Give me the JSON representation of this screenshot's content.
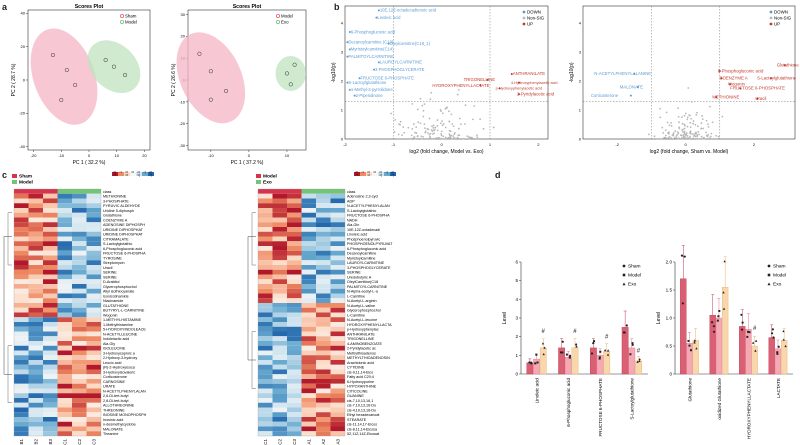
{
  "panels": {
    "a": "a",
    "b": "b",
    "c": "c",
    "d": "d"
  },
  "scores1": {
    "title": "Scores Plot",
    "xlabel": "PC 1 ( 32.2 %)",
    "ylabel": "PC 2 ( 28.7 %)",
    "legend": [
      "Sham",
      "Model"
    ],
    "xticks": [
      "-20",
      "-10",
      "0",
      "10",
      "20"
    ],
    "yticks": [
      "-40",
      "-20",
      "0",
      "20",
      "40"
    ],
    "sham": [
      [
        -13,
        15
      ],
      [
        -8,
        6
      ],
      [
        -5,
        -3
      ],
      [
        -10,
        -12
      ]
    ],
    "model": [
      [
        6,
        12
      ],
      [
        9,
        8
      ],
      [
        13,
        3
      ]
    ]
  },
  "scores2": {
    "title": "Scores Plot",
    "xlabel": "PC 1 ( 37.2 %)",
    "ylabel": "PC 2 ( 26.6 %)",
    "legend": [
      "Model",
      "Exo"
    ],
    "xticks": [
      "-10",
      "0",
      "10"
    ],
    "yticks": [
      "-30",
      "-20",
      "-10",
      "0",
      "10",
      "20",
      "30"
    ],
    "model": [
      [
        -13,
        12
      ],
      [
        -10,
        4
      ],
      [
        -6,
        -5
      ],
      [
        -10,
        -9
      ]
    ],
    "exo": [
      [
        10,
        3
      ],
      [
        11,
        -2
      ],
      [
        12,
        7
      ]
    ]
  },
  "volcano1": {
    "xlabel": "log2 (fold change, Model vs. Exo)",
    "ylabel": "-log10(p)",
    "legend": [
      "DOWN",
      "Non-SIG",
      "UP"
    ],
    "xticks": [
      "-2",
      "-1",
      "0",
      "1",
      "2"
    ],
    "yticks": [
      "0",
      "1",
      "2",
      "3",
      "4"
    ],
    "down": [
      "10E,12Z-octadecadienoic acid",
      "Linoleic acid",
      "6-Phosphogluconic acid",
      "Decanoylcarnitine (C10)",
      "Myristoylcarnitine(C14)",
      "Oleylcarnitine(C18_1)",
      "PALMITOYLCARNITINE",
      "LAUROYLCARNITINE",
      "3-PHOSPHOGLYCERATE",
      "FRUCTOSE 6-PHOSPHATE",
      "S-Lactoylglutathione",
      "1-Methyl-2-pyrrolidone",
      "2-Piperidinone"
    ],
    "up": [
      "TRIGONELLINE",
      "ANTHRANILATE",
      "HYDROXYPHENYLLACTATE",
      "4-Hydroxyphenylacetic acid",
      "p-Hydroxyphenylacetic acid",
      "2-Pyridylacetic acid"
    ]
  },
  "volcano2": {
    "xlabel": "log2 (fold change, Sham vs. Model)",
    "ylabel": "-log10(p)",
    "legend": [
      "DOWN",
      "Non-SIG",
      "UP"
    ],
    "xticks": [
      "-2",
      "0",
      "2"
    ],
    "yticks": [
      "0",
      "1",
      "2",
      "3",
      "4"
    ],
    "down": [
      "N-ACETYLPHENYLALANINE",
      "MALONATE",
      "Corticosterone"
    ],
    "up": [
      "6-Phosphogluconic acid",
      "COENZYME A",
      "Wogonin",
      "Glutathione",
      "S-Lactoylglutathione",
      "FRUCTOSE 6-PHOSPHATE",
      "METHIONINE",
      "Uracil"
    ]
  },
  "heat1": {
    "legend": [
      "Sham",
      "Model"
    ],
    "samples": [
      "B1",
      "B2",
      "B3",
      "C1",
      "C2",
      "C3"
    ],
    "scale": [
      "1.5",
      "1",
      "0.5",
      "0",
      "-0.5",
      "-1",
      "-1.5"
    ],
    "rows": [
      "class",
      "METHIONINE",
      "3-PHOSPHATE",
      "PYRUVIC ALDEHYDE",
      "Uridine 5-diphosph",
      "Glutathione",
      "COENZYME A",
      "ADENOSINE DIPHOSPH",
      "URIDINE DIPHOSPHAT",
      "URIDINE DIPHOSPHAT",
      "CITRAMALATE",
      "S-Lactoylglutathio",
      "6-Phosphogluconic acid",
      "FRUCTOSE 6-PHOSPHA",
      "TYROSINE",
      "Streptomycin",
      "Uracil",
      "SERINE",
      "SERINE",
      "D-Arabitol",
      "Glycerophosphochol",
      "Allyl isothiocyanate",
      "Isonicotinamide",
      "Niacinamide",
      "GLUTATHIONE",
      "BUTYRYL-L-CARNITINE",
      "Wogonin",
      "1-METHYLHISTAMINE",
      "1-Methylhistamine",
      "5-HYDROXYINDOLEACE",
      "N-ACETYLLEUCINE",
      "Indolelactic acid",
      "Ala-Gly",
      "ISOLEUCINE",
      "3-Hydroxycaproic a",
      "2-Hydroxy-3-hydroxy",
      "Leucic acid",
      "(R)-2-Hydroxyisoca",
      "3-Hydroxyisovaleric",
      "Corticosterone",
      "CARNOSINE",
      "URATE",
      "N-ACETYLPHENYLALAN",
      "2,6-Di-tert-butyl",
      "2,6-Di-tert-butyl",
      "ALLOTHREONINE",
      "THREONINE",
      "INOSINE MONOPHOSPH",
      "Inosinic acid",
      "n-desmethylcycloba",
      "MALONATE",
      "Theanine"
    ]
  },
  "heat2": {
    "legend": [
      "Model",
      "Exo"
    ],
    "samples": [
      "C1",
      "C2",
      "C3",
      "A1",
      "A2",
      "A3"
    ],
    "scale": [
      "1.5",
      "1",
      "0.5",
      "0",
      "-0.5",
      "-1",
      "-1.5"
    ],
    "rows": [
      "class",
      "Adenosine 2,3-cycl",
      "ADP",
      "N-ACETYLPHENYLALAN",
      "S-Lactoylglutathio",
      "FRUCTOSE 6-PHOSPHA",
      "NADH",
      "Ala-Gln",
      "10E,12Z-octadecadi",
      "Linoleic acid",
      "Phosphoenolpyruvic",
      "PHOSPHOENOLPYRUVAT",
      "6-Phosphogluconic acid",
      "Decanoylcarnitine",
      "Myristoylcarnitine",
      "LAUROYLCARNITINE",
      "3-PHOSPHOGLYCERATE",
      "SERINE",
      "Uredobutyric A",
      "OleylCarnitine(C18",
      "PALMITOYLCARNITINE",
      "N-Alpha-acetyl-L-a",
      "L-Carnitine",
      "N-Acetyl-L-arginin",
      "N-Acetyl-L-valine",
      "Glycerophosphochol",
      "L-Carnitine",
      "N-Acetyl-L-leucine",
      "HYDROXYPHENYLLACTA",
      "p-Hydroxyphenylac",
      "ANTHRANILATE",
      "TRIGONELLINE",
      "4-AMINOBENZOATE",
      "2-Pyridylacetic ac",
      "Methylthioadenos",
      "METHYLTHIOADENOSIN",
      "Arachidonic acid",
      "CYTIDINE",
      "cis-9,11,14-Eico",
      "Fatty acid C20:4",
      "6-Hydroxypurine",
      "HYPOXANTHINE",
      "CITICOLINE",
      "GUANINE",
      "cis-7,10,13,16,1",
      "cis-7,10,13,16-Do",
      "cis-4,10,13,16-Do",
      "Ethyl hexadecanoat",
      "STEARATE",
      "cis-11,14,17-Eicos",
      "cis-8,11,14-Eicosa",
      "5Z,11Z,14Z-Eicosat"
    ]
  },
  "bar1": {
    "ylabel": "Level",
    "legend": [
      "Sham",
      "Model",
      "Exo"
    ],
    "categories": [
      "Linoleic acid",
      "6-Phosphogluconic acid",
      "FRUCTOSE 6-PHOSPHATE",
      "S-Lactoylglutathione"
    ],
    "ylim": [
      0,
      6
    ],
    "yticks": [
      "0",
      "1",
      "2",
      "3",
      "4",
      "5",
      "6"
    ],
    "series": [
      {
        "name": "Sham",
        "values": [
          0.6,
          1.4,
          1.4,
          2.5
        ]
      },
      {
        "name": "Model",
        "values": [
          0.8,
          0.9,
          1.0,
          1.4
        ]
      },
      {
        "name": "Exo",
        "values": [
          1.4,
          1.4,
          1.2,
          0.7
        ]
      }
    ],
    "annotations": [
      "#",
      "#",
      "#",
      "#"
    ]
  },
  "bar2": {
    "ylabel": "Level",
    "legend": [
      "Sham",
      "Model",
      "Exo"
    ],
    "categories": [
      "Glutathione",
      "oxidized Glutathione",
      "HYDROXYPHENYLLACTATE",
      "LACTATE"
    ],
    "ylim": [
      0,
      2
    ],
    "yticks": [
      "0",
      "0.5",
      "1.0",
      "1.5",
      "2.0"
    ],
    "series": [
      {
        "name": "Sham",
        "values": [
          1.7,
          1.05,
          0.85,
          0.65
        ]
      },
      {
        "name": "Model",
        "values": [
          0.55,
          1.0,
          0.8,
          0.45
        ]
      },
      {
        "name": "Exo",
        "values": [
          0.6,
          1.55,
          0.5,
          0.6
        ]
      }
    ],
    "annotations": [
      "",
      "",
      "#",
      ""
    ]
  },
  "colors": {
    "sham": "#e8607a",
    "model": "#d43c55",
    "exo": "#6cc07a",
    "down": "#5b9bd5",
    "up": "#c0392b",
    "nonsig": "#b8b8b8",
    "green": "#74c476"
  }
}
